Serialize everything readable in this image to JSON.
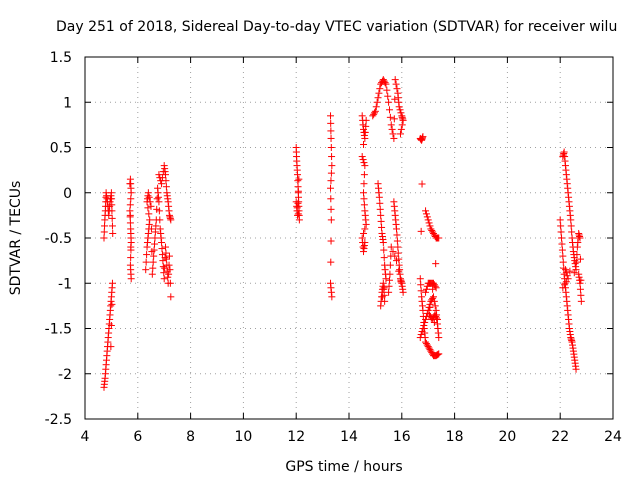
{
  "chart_data": {
    "type": "scatter",
    "title": "Day 251 of 2018, Sidereal Day-to-day VTEC variation (SDTVAR) for receiver wilu",
    "xlabel": "GPS time / hours",
    "ylabel": "SDTVAR / TECUs",
    "xlim": [
      4,
      24
    ],
    "ylim": [
      -2.5,
      1.5
    ],
    "xticks": [
      4,
      6,
      8,
      10,
      12,
      14,
      16,
      18,
      20,
      22,
      24
    ],
    "yticks": [
      -2.5,
      -2,
      -1.5,
      -1,
      -0.5,
      0,
      0.5,
      1,
      1.5
    ],
    "xtick_labels": [
      "4",
      "6",
      "8",
      "10",
      "12",
      "14",
      "16",
      "18",
      "20",
      "22",
      "24"
    ],
    "ytick_labels": [
      "-2.5",
      "-2",
      "-1.5",
      "-1",
      "-0.5",
      "0",
      "0.5",
      "1",
      "1.5"
    ],
    "grid": true,
    "marker": "+",
    "color": "#ff0000",
    "series": [
      {
        "name": "SDTVAR",
        "tracks": [
          [
            [
              4.72,
              -0.5
            ],
            [
              4.75,
              -0.3
            ],
            [
              4.78,
              -0.15
            ],
            [
              4.8,
              0.0
            ],
            [
              4.85,
              -0.1
            ],
            [
              4.9,
              -0.25
            ],
            [
              4.95,
              -0.1
            ],
            [
              5.0,
              0.0
            ],
            [
              5.02,
              -0.2
            ],
            [
              5.05,
              -0.45
            ]
          ],
          [
            [
              4.72,
              -2.15
            ],
            [
              4.76,
              -2.05
            ],
            [
              4.8,
              -1.9
            ],
            [
              4.84,
              -1.75
            ],
            [
              4.88,
              -1.6
            ],
            [
              4.92,
              -1.45
            ],
            [
              4.96,
              -1.3
            ],
            [
              5.0,
              -1.15
            ],
            [
              5.04,
              -1.0
            ],
            [
              4.98,
              -1.7
            ]
          ],
          [
            [
              5.72,
              0.15
            ],
            [
              5.75,
              0.0
            ],
            [
              5.7,
              -0.2
            ],
            [
              5.73,
              -0.4
            ],
            [
              5.75,
              -0.55
            ],
            [
              5.72,
              -0.8
            ],
            [
              5.75,
              -0.95
            ],
            [
              5.7,
              0.1
            ]
          ],
          [
            [
              6.3,
              -0.85
            ],
            [
              6.35,
              -0.6
            ],
            [
              6.4,
              -0.45
            ],
            [
              6.45,
              -0.3
            ],
            [
              6.35,
              -0.1
            ],
            [
              6.4,
              0.0
            ],
            [
              6.5,
              -0.15
            ],
            [
              6.55,
              -0.9
            ],
            [
              6.6,
              -0.7
            ],
            [
              6.65,
              -0.5
            ],
            [
              6.7,
              -0.3
            ],
            [
              6.75,
              0.05
            ],
            [
              6.8,
              -0.1
            ],
            [
              6.85,
              -0.4
            ],
            [
              6.9,
              -0.55
            ],
            [
              6.95,
              -0.75
            ],
            [
              7.0,
              -0.95
            ],
            [
              7.05,
              -0.6
            ],
            [
              7.1,
              -0.8
            ],
            [
              7.15,
              -1.0
            ],
            [
              7.2,
              -0.7
            ],
            [
              7.25,
              -1.15
            ]
          ],
          [
            [
              6.8,
              0.2
            ],
            [
              6.9,
              0.1
            ],
            [
              7.0,
              0.3
            ],
            [
              7.05,
              0.2
            ],
            [
              7.1,
              0.0
            ],
            [
              7.15,
              -0.1
            ],
            [
              7.2,
              -0.25
            ],
            [
              7.25,
              -0.3
            ]
          ],
          [
            [
              12.0,
              0.5
            ],
            [
              12.02,
              0.35
            ],
            [
              12.05,
              0.2
            ],
            [
              12.08,
              0.0
            ],
            [
              12.1,
              -0.15
            ],
            [
              12.12,
              -0.3
            ],
            [
              12.0,
              -0.1
            ],
            [
              12.05,
              -0.25
            ],
            [
              12.1,
              0.15
            ]
          ],
          [
            [
              13.3,
              0.85
            ],
            [
              13.32,
              0.6
            ],
            [
              13.35,
              0.3
            ],
            [
              13.3,
              0.05
            ],
            [
              13.33,
              -0.3
            ],
            [
              13.3,
              -1.0
            ],
            [
              13.35,
              -1.15
            ]
          ],
          [
            [
              14.5,
              0.85
            ],
            [
              14.55,
              0.7
            ],
            [
              14.6,
              0.6
            ],
            [
              14.65,
              0.8
            ],
            [
              14.5,
              0.4
            ],
            [
              14.6,
              0.3
            ],
            [
              14.55,
              0.0
            ],
            [
              14.6,
              -0.2
            ],
            [
              14.65,
              -0.35
            ],
            [
              14.5,
              -0.5
            ],
            [
              14.55,
              -0.65
            ],
            [
              14.6,
              -0.55
            ]
          ],
          [
            [
              14.9,
              0.85
            ],
            [
              15.0,
              0.9
            ],
            [
              15.1,
              1.05
            ],
            [
              15.2,
              1.2
            ],
            [
              15.3,
              1.25
            ],
            [
              15.4,
              1.2
            ],
            [
              15.5,
              1.0
            ],
            [
              15.6,
              0.75
            ],
            [
              15.7,
              0.6
            ],
            [
              15.75,
              1.25
            ],
            [
              15.85,
              1.1
            ],
            [
              15.9,
              0.95
            ],
            [
              16.0,
              0.85
            ],
            [
              16.05,
              0.8
            ],
            [
              15.95,
              0.65
            ]
          ],
          [
            [
              15.1,
              0.1
            ],
            [
              15.15,
              -0.05
            ],
            [
              15.2,
              -0.25
            ],
            [
              15.25,
              -0.45
            ],
            [
              15.3,
              -0.55
            ],
            [
              15.35,
              -0.8
            ],
            [
              15.4,
              -0.95
            ],
            [
              15.2,
              -1.25
            ],
            [
              15.25,
              -1.1
            ],
            [
              15.3,
              -1.0
            ],
            [
              15.35,
              -1.2
            ]
          ],
          [
            [
              15.7,
              -0.1
            ],
            [
              15.75,
              -0.25
            ],
            [
              15.8,
              -0.4
            ],
            [
              15.85,
              -0.6
            ],
            [
              15.9,
              -0.8
            ],
            [
              15.95,
              -0.95
            ],
            [
              16.0,
              -1.0
            ],
            [
              16.05,
              -1.1
            ],
            [
              15.8,
              -0.75
            ],
            [
              15.6,
              -0.6
            ],
            [
              15.55,
              -0.9
            ],
            [
              15.5,
              -1.1
            ]
          ],
          [
            [
              16.7,
              0.6
            ],
            [
              16.75,
              0.58
            ],
            [
              16.8,
              0.62
            ],
            [
              16.7,
              -0.95
            ],
            [
              16.75,
              -1.15
            ],
            [
              16.8,
              -1.3
            ],
            [
              16.85,
              -1.5
            ],
            [
              16.9,
              -1.65
            ],
            [
              17.0,
              -1.7
            ],
            [
              17.1,
              -1.75
            ],
            [
              17.2,
              -1.8
            ],
            [
              17.3,
              -1.8
            ],
            [
              17.4,
              -1.78
            ]
          ],
          [
            [
              16.7,
              -1.6
            ],
            [
              16.8,
              -1.5
            ],
            [
              16.9,
              -1.4
            ],
            [
              17.0,
              -1.3
            ],
            [
              17.1,
              -1.2
            ],
            [
              17.2,
              -1.15
            ],
            [
              17.3,
              -1.3
            ],
            [
              17.35,
              -1.45
            ],
            [
              17.4,
              -1.6
            ],
            [
              16.9,
              -1.1
            ],
            [
              17.0,
              -1.0
            ],
            [
              17.1,
              -1.0
            ],
            [
              17.2,
              -1.0
            ],
            [
              17.3,
              -1.05
            ]
          ],
          [
            [
              16.9,
              -0.2
            ],
            [
              17.0,
              -0.3
            ],
            [
              17.1,
              -0.4
            ],
            [
              17.2,
              -0.45
            ],
            [
              17.3,
              -0.5
            ],
            [
              17.4,
              -0.5
            ],
            [
              17.05,
              -1.35
            ],
            [
              17.15,
              -1.4
            ],
            [
              17.25,
              -1.35
            ],
            [
              17.35,
              -1.4
            ]
          ],
          [
            [
              22.0,
              -0.3
            ],
            [
              22.05,
              -0.5
            ],
            [
              22.1,
              -0.7
            ],
            [
              22.15,
              -0.9
            ],
            [
              22.2,
              -1.05
            ],
            [
              22.25,
              -1.2
            ],
            [
              22.3,
              -1.35
            ],
            [
              22.35,
              -1.5
            ],
            [
              22.4,
              -1.6
            ],
            [
              22.45,
              -1.65
            ],
            [
              22.5,
              -1.75
            ],
            [
              22.55,
              -1.85
            ],
            [
              22.6,
              -1.95
            ]
          ],
          [
            [
              22.1,
              0.4
            ],
            [
              22.15,
              0.45
            ],
            [
              22.2,
              0.3
            ],
            [
              22.25,
              0.15
            ],
            [
              22.3,
              0.0
            ],
            [
              22.35,
              -0.15
            ],
            [
              22.4,
              -0.3
            ],
            [
              22.45,
              -0.5
            ],
            [
              22.5,
              -0.65
            ],
            [
              22.55,
              -0.75
            ],
            [
              22.6,
              -0.85
            ],
            [
              22.65,
              -0.6
            ],
            [
              22.7,
              -0.45
            ],
            [
              22.75,
              -0.5
            ],
            [
              22.8,
              -1.2
            ],
            [
              22.75,
              -1.0
            ],
            [
              22.7,
              -0.9
            ],
            [
              22.2,
              -0.85
            ],
            [
              22.3,
              -0.95
            ],
            [
              22.1,
              -1.05
            ]
          ]
        ]
      }
    ]
  }
}
